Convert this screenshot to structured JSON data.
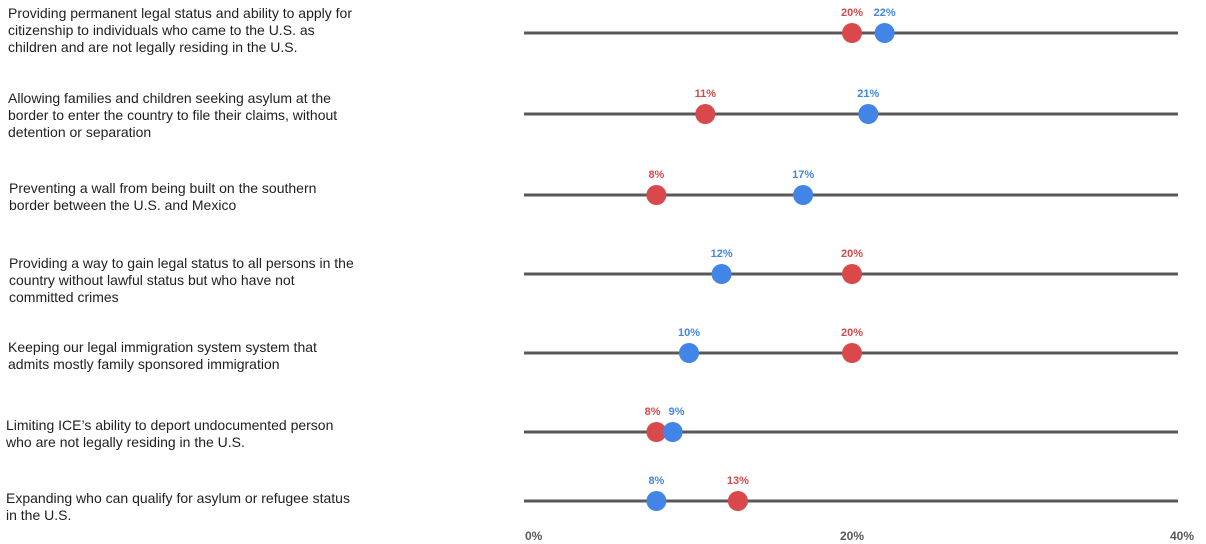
{
  "colors": {
    "red": "#d9484a",
    "blue": "#4285e6",
    "line": "#595959"
  },
  "chart_data": {
    "type": "dot",
    "title": "",
    "xlabel": "",
    "ylabel": "",
    "xlim": [
      0,
      40
    ],
    "x_ticks": [
      {
        "value": 0,
        "label": "0%"
      },
      {
        "value": 20,
        "label": "20%"
      },
      {
        "value": 40,
        "label": "40%"
      }
    ],
    "grid": false,
    "legend": "none",
    "categories": [
      "Providing permanent legal status and ability to apply for citizenship to individuals who came to the U.S. as children and are not legally residing in the U.S.",
      "Allowing families and children seeking asylum at the border to enter the country to file their claims, without detention or separation",
      "Preventing a wall from being built on the southern border between the U.S. and Mexico",
      "Providing a way to gain legal status to all persons in the country without lawful status but who have not committed crimes",
      "Keeping our legal immigration system system that admits mostly family sponsored immigration",
      "Limiting ICE’s ability to deport undocumented person who are not legally residing in the U.S.",
      "Expanding who can qualify for asylum or refugee status in the U.S."
    ],
    "category_lines": [
      [
        "Providing permanent legal status and ability to apply for",
        "citizenship to individuals who came to the U.S. as",
        "children and are not legally residing in the U.S."
      ],
      [
        "Allowing families and children seeking asylum at the",
        "border to enter the country to file their claims, without",
        "detention or separation"
      ],
      [
        "Preventing a wall from being built on the southern",
        "border between the U.S. and Mexico"
      ],
      [
        "Providing a way to gain legal status to all persons in the",
        "country without lawful status but who have not",
        "committed crimes"
      ],
      [
        "Keeping our legal immigration system system that",
        "admits mostly family sponsored immigration"
      ],
      [
        "Limiting ICE’s ability to deport undocumented person",
        "who are not legally residing in the U.S."
      ],
      [
        "Expanding who can qualify for asylum or refugee status",
        "in the U.S."
      ]
    ],
    "series": [
      {
        "color": "red",
        "values": [
          20,
          11,
          8,
          20,
          20,
          8,
          13
        ],
        "labels": [
          "20%",
          "11%",
          "8%",
          "20%",
          "20%",
          "8%",
          "13%"
        ]
      },
      {
        "color": "blue",
        "values": [
          22,
          21,
          17,
          12,
          10,
          9,
          8
        ],
        "labels": [
          "22%",
          "21%",
          "17%",
          "12%",
          "10%",
          "9%",
          "8%"
        ]
      }
    ]
  }
}
